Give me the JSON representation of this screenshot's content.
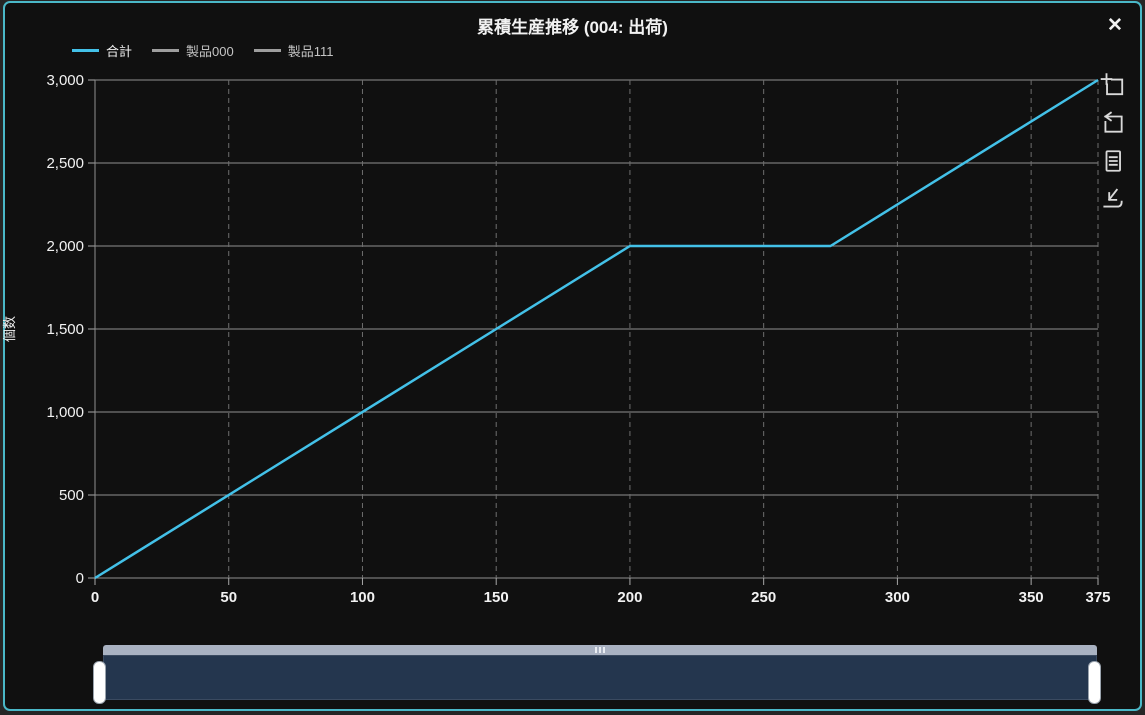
{
  "window": {
    "title": "累積生産推移 (004: 出荷)",
    "close_glyph": "✕"
  },
  "colors": {
    "window_border": "#4ab8c8",
    "window_bg": "#101010",
    "outer_bg": "#262626",
    "text": "#f2f2f2",
    "grid_h": "#8f8f8f",
    "grid_v": "#6e6e6e",
    "tick": "#a8a8a8",
    "series_total": "#43c1e8",
    "series_hidden": "#9e9e9e",
    "legend_text_active": "#f2f2f2",
    "legend_text_hidden": "#c4c4c4",
    "icon": "#d9d9d9",
    "nav_rail": "#a9b2c2",
    "nav_range": "#24364e",
    "nav_handle": "#ffffff"
  },
  "legend": {
    "items": [
      {
        "label": "合計",
        "color": "#43c1e8",
        "active": true
      },
      {
        "label": "製品000",
        "color": "#9e9e9e",
        "active": false
      },
      {
        "label": "製品111",
        "color": "#9e9e9e",
        "active": false
      }
    ]
  },
  "toolbar": {
    "icons": [
      "zoom-box-icon",
      "reset-zoom-icon",
      "document-icon",
      "download-icon"
    ]
  },
  "chart_data": {
    "type": "line",
    "title": "累積生産推移 (004: 出荷)",
    "xlabel": "",
    "ylabel": "個数",
    "xlim": [
      0,
      375
    ],
    "ylim": [
      0,
      3000
    ],
    "x_ticks": [
      0,
      50,
      100,
      150,
      200,
      250,
      300,
      350,
      375
    ],
    "y_ticks": [
      0,
      500,
      1000,
      1500,
      2000,
      2500,
      3000
    ],
    "grid": true,
    "gridline_style": {
      "horizontal": "solid",
      "vertical": "dashed"
    },
    "legend_position": "top-left",
    "series": [
      {
        "name": "合計",
        "color": "#43c1e8",
        "visible": true,
        "points": [
          [
            0,
            0
          ],
          [
            200,
            2000
          ],
          [
            275,
            2000
          ],
          [
            375,
            3000
          ]
        ]
      },
      {
        "name": "製品000",
        "color": "#9e9e9e",
        "visible": false,
        "points": []
      },
      {
        "name": "製品111",
        "color": "#9e9e9e",
        "visible": false,
        "points": []
      }
    ]
  },
  "navigator": {
    "full_range_selected": true
  }
}
